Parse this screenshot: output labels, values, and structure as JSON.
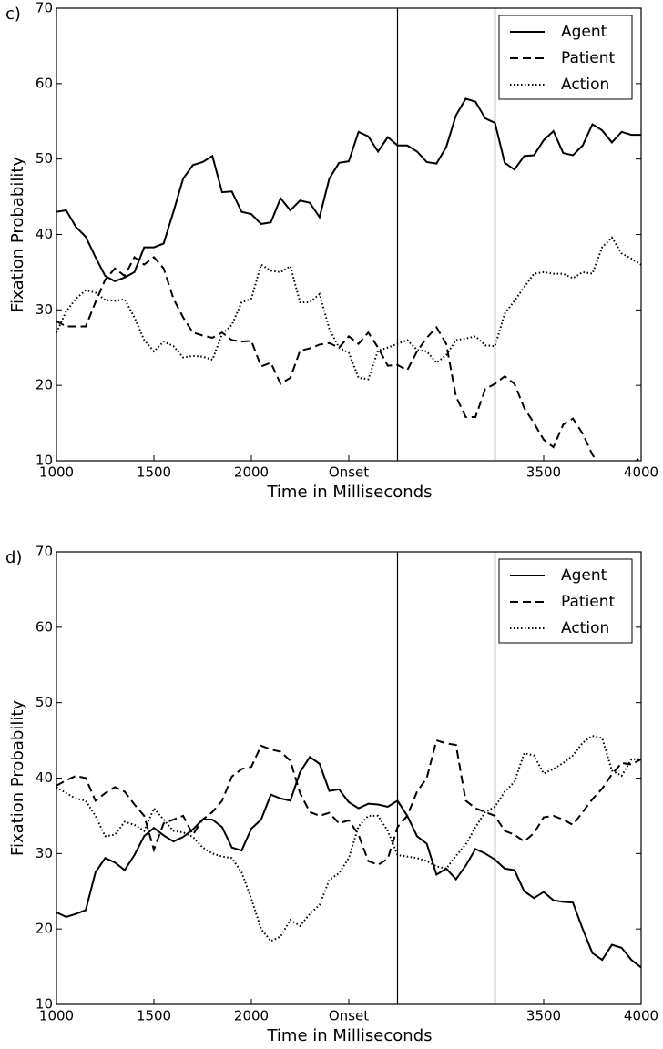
{
  "chart_data": [
    {
      "type": "line",
      "panel_label": "c)",
      "xlabel": "Time in Milliseconds",
      "ylabel": "Fixation Probability",
      "xlim": [
        1000,
        4000
      ],
      "ylim": [
        10,
        70
      ],
      "xticks": [
        1000,
        1500,
        2000,
        {
          "value": 2500,
          "label": "Onset"
        },
        3500,
        4000
      ],
      "yticks": [
        10,
        20,
        30,
        40,
        50,
        60,
        70
      ],
      "vlines": [
        2750,
        3250
      ],
      "legend": "upper right",
      "x": [
        1000,
        1050,
        1100,
        1150,
        1200,
        1250,
        1300,
        1350,
        1400,
        1450,
        1500,
        1550,
        1600,
        1650,
        1700,
        1750,
        1800,
        1850,
        1900,
        1950,
        2000,
        2050,
        2100,
        2150,
        2200,
        2250,
        2300,
        2350,
        2400,
        2450,
        2500,
        2550,
        2600,
        2650,
        2700,
        2750,
        2800,
        2850,
        2900,
        2950,
        3000,
        3050,
        3100,
        3150,
        3200,
        3250,
        3300,
        3350,
        3400,
        3450,
        3500,
        3550,
        3600,
        3650,
        3700,
        3750,
        3800,
        3850,
        3900,
        3950,
        4000
      ],
      "series": [
        {
          "name": "Agent",
          "color": "#000000",
          "dash": "solid",
          "values": [
            43,
            43.2,
            41,
            39.7,
            37,
            34.5,
            33.8,
            34.3,
            35,
            38.3,
            38.3,
            38.8,
            43,
            47.4,
            49.2,
            49.6,
            50.4,
            45.6,
            45.7,
            43,
            42.7,
            41.4,
            41.6,
            44.8,
            43.2,
            44.5,
            44.2,
            42.3,
            47.4,
            49.5,
            49.7,
            53.6,
            53,
            51,
            52.9,
            51.8,
            51.8,
            51,
            49.6,
            49.4,
            51.6,
            55.8,
            58,
            57.6,
            55.4,
            54.8,
            49.5,
            48.6,
            50.4,
            50.5,
            52.5,
            53.7,
            50.8,
            50.5,
            51.8,
            54.6,
            53.8,
            52.2,
            53.6,
            53.2,
            53.2
          ]
        },
        {
          "name": "Patient",
          "color": "#000000",
          "dash": "dashed",
          "values": [
            28.5,
            27.8,
            27.8,
            27.8,
            31,
            34,
            35.5,
            34.5,
            37,
            36,
            37,
            35.5,
            31.5,
            29,
            27,
            26.6,
            26.3,
            27,
            26,
            25.8,
            25.9,
            22.5,
            23,
            20.2,
            21,
            24.6,
            24.9,
            25.4,
            25.6,
            25,
            26.5,
            25.5,
            27,
            25,
            22.6,
            22.7,
            22,
            24.5,
            26.3,
            27.7,
            25.5,
            18.5,
            15.8,
            15.8,
            19.5,
            20.2,
            21.2,
            20.2,
            17,
            15,
            12.8,
            11.8,
            14.8,
            15.6,
            13.6,
            10.8,
            9,
            8,
            7.5,
            9.5,
            10.5
          ]
        },
        {
          "name": "Action",
          "color": "#000000",
          "dash": "dotted",
          "values": [
            27,
            29.8,
            31.5,
            32.6,
            32.3,
            31.3,
            31.2,
            31.4,
            29,
            26,
            24.5,
            25.8,
            25.2,
            23.7,
            23.9,
            23.8,
            23.4,
            26.8,
            28,
            31,
            31.5,
            36,
            35.2,
            35,
            35.8,
            31,
            31,
            32.1,
            27.5,
            25,
            24.3,
            21,
            20.8,
            24.6,
            25,
            25.5,
            26,
            24.7,
            24.5,
            23,
            24,
            26,
            26.2,
            26.5,
            25.3,
            25.2,
            29.5,
            31.2,
            33,
            34.8,
            35,
            34.8,
            34.8,
            34.2,
            35,
            34.8,
            38.3,
            39.6,
            37.5,
            36.8,
            36
          ]
        }
      ]
    },
    {
      "type": "line",
      "panel_label": "d)",
      "xlabel": "Time in Milliseconds",
      "ylabel": "Fixation Probability",
      "xlim": [
        1000,
        4000
      ],
      "ylim": [
        10,
        70
      ],
      "xticks": [
        1000,
        1500,
        2000,
        {
          "value": 2500,
          "label": "Onset"
        },
        3500,
        4000
      ],
      "yticks": [
        10,
        20,
        30,
        40,
        50,
        60,
        70
      ],
      "vlines": [
        2750,
        3250
      ],
      "legend": "upper right",
      "x": [
        1000,
        1050,
        1100,
        1150,
        1200,
        1250,
        1300,
        1350,
        1400,
        1450,
        1500,
        1550,
        1600,
        1650,
        1700,
        1750,
        1800,
        1850,
        1900,
        1950,
        2000,
        2050,
        2100,
        2150,
        2200,
        2250,
        2300,
        2350,
        2400,
        2450,
        2500,
        2550,
        2600,
        2650,
        2700,
        2750,
        2800,
        2850,
        2900,
        2950,
        3000,
        3050,
        3100,
        3150,
        3200,
        3250,
        3300,
        3350,
        3400,
        3450,
        3500,
        3550,
        3600,
        3650,
        3700,
        3750,
        3800,
        3850,
        3900,
        3950,
        4000
      ],
      "series": [
        {
          "name": "Agent",
          "color": "#000000",
          "dash": "solid",
          "values": [
            22.2,
            21.6,
            22,
            22.5,
            27.5,
            29.4,
            28.8,
            27.8,
            29.8,
            32.3,
            33.4,
            32.4,
            31.6,
            32.2,
            33.2,
            34.5,
            34.5,
            33.5,
            30.8,
            30.4,
            33.3,
            34.5,
            37.8,
            37.3,
            37,
            40.8,
            42.8,
            41.9,
            38.3,
            38.5,
            36.8,
            36,
            36.6,
            36.5,
            36.2,
            37,
            35,
            32.3,
            31.3,
            27.2,
            28,
            26.6,
            28.4,
            30.6,
            30,
            29.2,
            28,
            27.8,
            25,
            24.1,
            24.9,
            23.8,
            23.6,
            23.5,
            20,
            16.8,
            15.9,
            17.9,
            17.5,
            15.9,
            14.9
          ]
        },
        {
          "name": "Patient",
          "color": "#000000",
          "dash": "dashed",
          "values": [
            39,
            39.7,
            40.3,
            40,
            37,
            38,
            38.8,
            38.2,
            36.5,
            35,
            30.5,
            34,
            34.5,
            35,
            32.5,
            34.5,
            35.5,
            37,
            40.2,
            41.2,
            41.5,
            44.3,
            43.8,
            43.5,
            42.3,
            38,
            35.5,
            35,
            35.4,
            34,
            34.4,
            32.5,
            29,
            28.5,
            29.3,
            33.5,
            35,
            38.2,
            40,
            45,
            44.6,
            44.4,
            37,
            36,
            35.5,
            35,
            33,
            32.5,
            31.6,
            32.7,
            34.8,
            35,
            34.5,
            33.8,
            35.5,
            37.2,
            38.6,
            40.5,
            42,
            41.8,
            42.5
          ]
        },
        {
          "name": "Action",
          "color": "#000000",
          "dash": "dotted",
          "values": [
            38.8,
            38,
            37.3,
            37,
            35,
            32.3,
            32.5,
            34.2,
            33.8,
            33,
            36,
            34.5,
            33,
            32.8,
            32.2,
            30.8,
            30,
            29.6,
            29.4,
            27.5,
            24,
            20,
            18.4,
            19,
            21.2,
            20.4,
            22,
            23.2,
            26.5,
            27.4,
            29.4,
            33.6,
            35,
            35,
            33,
            29.8,
            29.6,
            29.4,
            29,
            28.3,
            28,
            29.7,
            31.2,
            33.5,
            35.5,
            36.2,
            38.2,
            39.5,
            43.3,
            43,
            40.6,
            41.2,
            42,
            43,
            44.7,
            45.6,
            45.3,
            41,
            40.3,
            42.5,
            42.5
          ]
        }
      ]
    }
  ]
}
